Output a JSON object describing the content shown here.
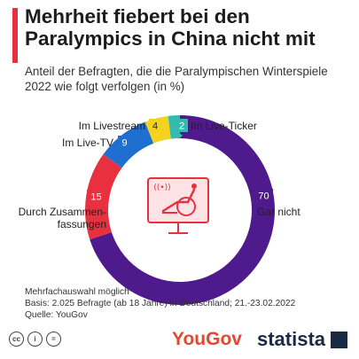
{
  "header": {
    "title": "Mehrheit fiebert bei den Paralympics in China nicht mit",
    "subtitle": "Anteil der Befragten, die die Paralympischen Winterspiele 2022 wie folgt verfolgen (in %)"
  },
  "chart_data": {
    "type": "pie",
    "donut": true,
    "categories": [
      "Gar nicht",
      "Durch Zusammenfassungen",
      "Im Live-TV",
      "Im Livestream",
      "Im Live-Ticker"
    ],
    "values": [
      70,
      15,
      9,
      4,
      2
    ],
    "colors": [
      "#4f1a8c",
      "#e9303f",
      "#1f6fd0",
      "#f4d320",
      "#36b9ae"
    ],
    "labels": {
      "gar_nicht": {
        "value": "70",
        "text": "Gar nicht"
      },
      "zusammenfassungen": {
        "value": "15",
        "text_line1": "Durch Zusammen-",
        "text_line2": "fassungen"
      },
      "live_tv": {
        "value": "9",
        "text": "Im Live-TV"
      },
      "livestream": {
        "value": "4",
        "text": "Im Livestream"
      },
      "live_ticker": {
        "value": "2",
        "text": "Im Live-Ticker"
      }
    }
  },
  "footer": {
    "note": "Mehrfachauswahl möglich",
    "basis": "Basis: 2.025 Befragte (ab 18 Jahre) in Deutschland; 21.-23.02.2022",
    "source": "Quelle: YouGov"
  },
  "branding": {
    "yougov": "YouGov",
    "statista": "statista",
    "cc_icons": [
      "cc",
      "i",
      "="
    ]
  }
}
